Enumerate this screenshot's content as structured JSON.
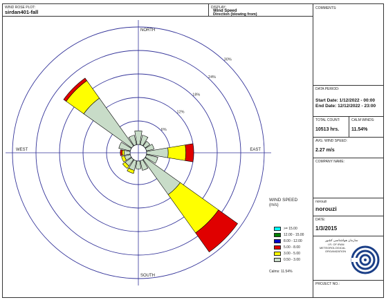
{
  "header": {
    "plot_label": "WIND ROSE PLOT:",
    "plot_name": "sirdan401-fall",
    "display_label": "DISPLAY:",
    "display_line1": "Wind Speed",
    "display_line2": "Direction (blowing from)"
  },
  "sidebar": {
    "comments_label": "COMMENTS:",
    "data_period_label": "DATA PERIOD:",
    "start_date": "Start Date: 1/12/2022 - 00:00",
    "end_date": "End Date: 12/12/2022 - 23:00",
    "total_count_label": "TOTAL COUNT:",
    "total_count": "10513 hrs.",
    "calm_winds_label": "CALM WINDS:",
    "calm_winds": "11.54%",
    "avg_speed_label": "AVG. WIND SPEED:",
    "avg_speed": "2.27 m/s",
    "company_label": "COMPANY NAME:",
    "modeler_label": "norouzi",
    "modeler": "norouzi",
    "date_label": "DATE:",
    "date": "1/3/2015",
    "logo_text_fa": "سازمان هواشناسی کشور",
    "logo_text_1": "I.R. OF IRAN",
    "logo_text_2": "METEOROLOGICAL",
    "logo_text_3": "ORGANIZATION",
    "project_label": "PROJECT NO.:"
  },
  "colors": {
    "s1": "#c8dcc8",
    "s2": "#ffff00",
    "s3": "#e00000",
    "s4": "#0000cc",
    "s5": "#008000",
    "s6": "#00ffff",
    "grid": "#333399"
  },
  "chart_data": {
    "type": "windrose",
    "direction_labels": [
      "NORTH",
      "EAST",
      "SOUTH",
      "WEST"
    ],
    "ring_labels": [
      "6%",
      "12%",
      "18%",
      "24%",
      "30%"
    ],
    "rmax": 30,
    "legend_title": "WIND SPEED",
    "legend_unit": "(m/s)",
    "calms_text": "Calms: 11.54%",
    "bins": [
      "0.50 - 3.00",
      "3.00 - 5.00",
      "5.00 - 8.00",
      "8.00 - 12.00",
      "12.00 - 15.00",
      ">= 15.00"
    ],
    "directions": [
      0,
      22.5,
      45,
      67.5,
      90,
      112.5,
      135,
      157.5,
      180,
      202.5,
      225,
      247.5,
      270,
      292.5,
      315,
      337.5
    ],
    "petals": [
      [
        3.5,
        0,
        0,
        0,
        0,
        0
      ],
      [
        2.5,
        0,
        0,
        0,
        0,
        0
      ],
      [
        1.5,
        0,
        0,
        0,
        0,
        0
      ],
      [
        2.0,
        0,
        0,
        0,
        0,
        0
      ],
      [
        5.5,
        4.5,
        2.0,
        0,
        0,
        0
      ],
      [
        3.0,
        0,
        0,
        0,
        0,
        0
      ],
      [
        11.0,
        12.0,
        6.0,
        0,
        0,
        0
      ],
      [
        2.5,
        0,
        0,
        0,
        0,
        0
      ],
      [
        2.0,
        0,
        0,
        0,
        0,
        0
      ],
      [
        2.5,
        0.8,
        0,
        0,
        0,
        0
      ],
      [
        2.0,
        0.8,
        0,
        0,
        0,
        0
      ],
      [
        1.5,
        0.8,
        0,
        0,
        0,
        0
      ],
      [
        1.5,
        0.5,
        0.5,
        0,
        0,
        0
      ],
      [
        3.0,
        0,
        0,
        0,
        0,
        0
      ],
      [
        15.0,
        5.5,
        0.8,
        0,
        0,
        0
      ],
      [
        2.5,
        0,
        0,
        0,
        0,
        0
      ]
    ]
  }
}
